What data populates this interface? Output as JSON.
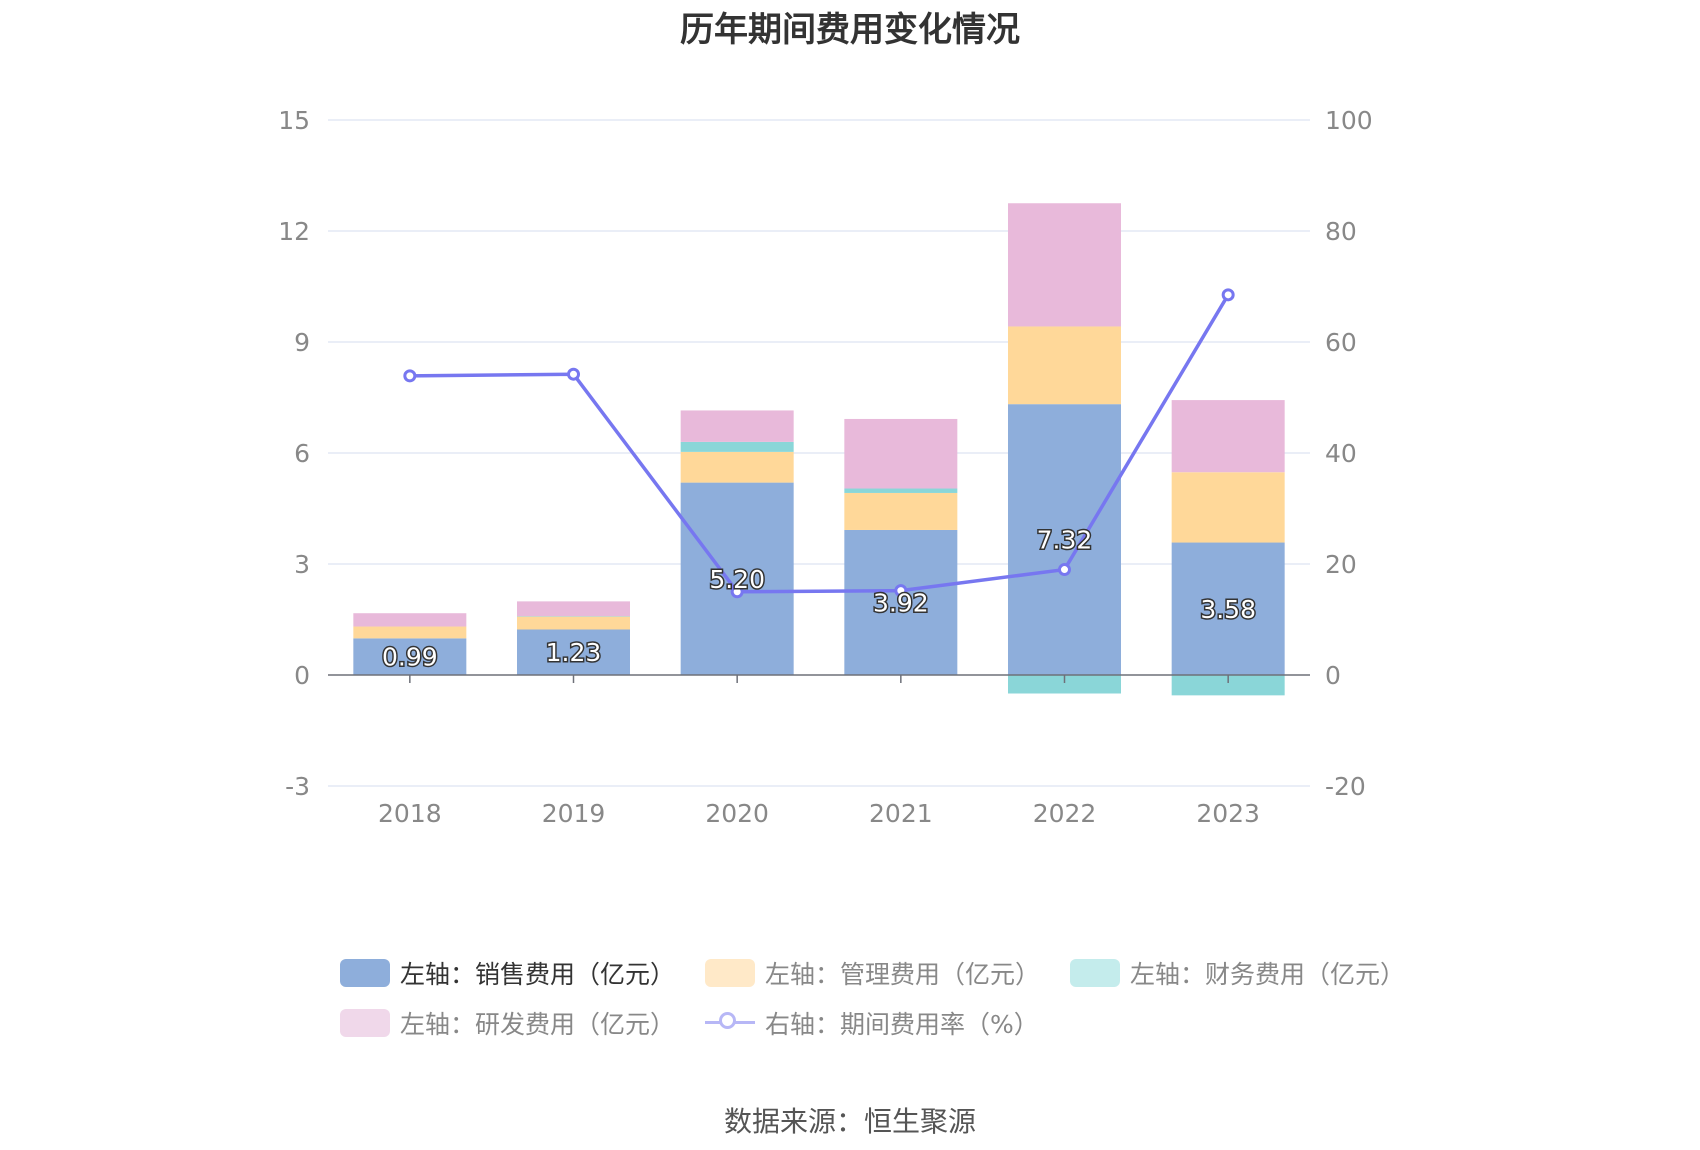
{
  "title": "历年期间费用变化情况",
  "source": "数据来源：恒生聚源",
  "colors": {
    "sales": "#8eaedb",
    "admin": "#ffd899",
    "finance": "#8ad6d8",
    "rd": "#e8b9da",
    "rate": "#7777f0",
    "grid": "#dde3f2",
    "axis_text": "#888888"
  },
  "legend": [
    {
      "label": "左轴：销售费用（亿元）",
      "swatch": "#8eaedb",
      "kind": "bar",
      "active": true
    },
    {
      "label": "左轴：管理费用（亿元）",
      "swatch": "#ffe9c8",
      "kind": "bar",
      "active": false
    },
    {
      "label": "左轴：财务费用（亿元）",
      "swatch": "#c4ecec",
      "kind": "bar",
      "active": false
    },
    {
      "label": "左轴：研发费用（亿元）",
      "swatch": "#f0d8ea",
      "kind": "bar",
      "active": false
    },
    {
      "label": "右轴：期间费用率（%）",
      "swatch": "#b7b7f6",
      "kind": "line",
      "active": false
    }
  ],
  "chart_data": {
    "type": "bar",
    "title": "历年期间费用变化情况",
    "categories": [
      "2018",
      "2019",
      "2020",
      "2021",
      "2022",
      "2023"
    ],
    "stacked": true,
    "y_left": {
      "ticks": [
        "-3",
        "0",
        "3",
        "6",
        "9",
        "12",
        "15"
      ],
      "range": [
        -3,
        15
      ]
    },
    "y_right": {
      "ticks": [
        "-20",
        "0",
        "20",
        "40",
        "60",
        "80",
        "100"
      ],
      "range": [
        -20,
        100
      ]
    },
    "grid": true,
    "legend_position": "bottom",
    "series": [
      {
        "name": "左轴：销售费用（亿元）",
        "axis": "left",
        "type": "bar",
        "values": [
          0.99,
          1.23,
          5.2,
          3.92,
          7.32,
          3.58
        ],
        "labels": [
          "0.99",
          "1.23",
          "5.20",
          "3.92",
          "7.32",
          "3.58"
        ]
      },
      {
        "name": "左轴：管理费用（亿元）",
        "axis": "left",
        "type": "bar",
        "values": [
          0.32,
          0.35,
          0.83,
          1.0,
          2.1,
          1.9
        ]
      },
      {
        "name": "左轴：财务费用（亿元）",
        "axis": "left",
        "type": "bar",
        "values": [
          0.0,
          0.01,
          0.27,
          0.12,
          -0.5,
          -0.55
        ]
      },
      {
        "name": "左轴：研发费用（亿元）",
        "axis": "left",
        "type": "bar",
        "values": [
          0.36,
          0.4,
          0.85,
          1.88,
          3.33,
          1.95
        ]
      },
      {
        "name": "右轴：期间费用率（%）",
        "axis": "right",
        "type": "line",
        "values": [
          53.9,
          54.2,
          15.0,
          15.2,
          19.0,
          68.5
        ]
      }
    ]
  }
}
